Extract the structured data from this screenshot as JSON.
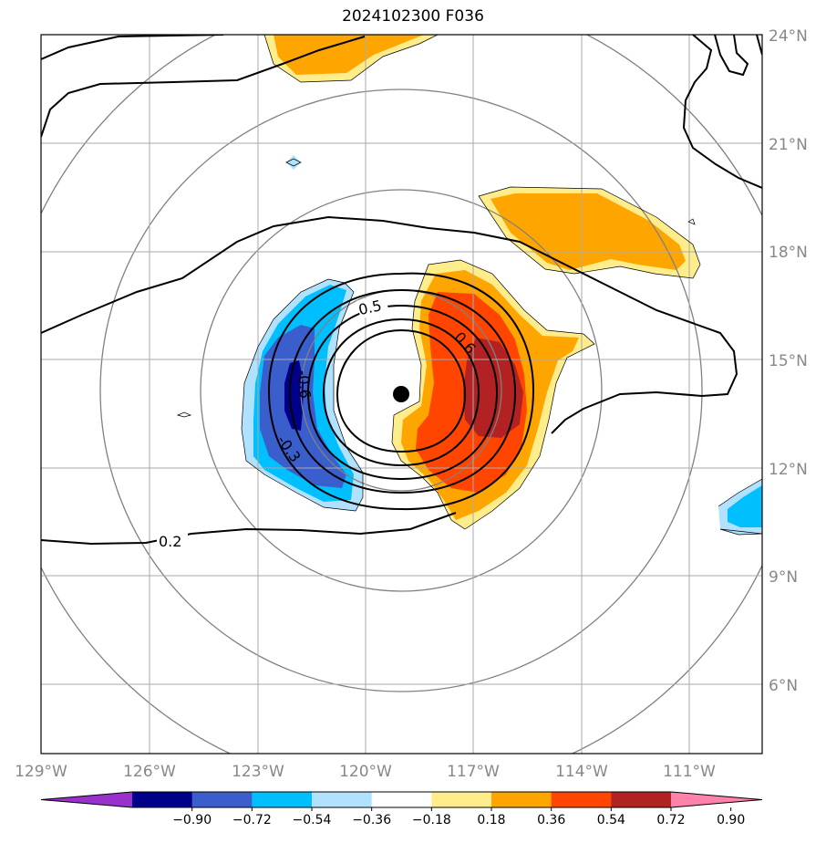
{
  "title": "2024102300 F036",
  "lon_ticks": [
    "129°W",
    "126°W",
    "123°W",
    "120°W",
    "117°W",
    "114°W",
    "111°W"
  ],
  "lat_ticks": [
    "24°N",
    "21°N",
    "18°N",
    "15°N",
    "12°N",
    "9°N",
    "6°N"
  ],
  "contour_labels": {
    "c02": "0.2",
    "c05": "0.5",
    "c06": "0.6",
    "cm03": "-0.3",
    "cm06": "-0.6"
  },
  "colorbar": {
    "labels": [
      "−0.90",
      "−0.72",
      "−0.54",
      "−0.36",
      "−0.18",
      "0.18",
      "0.36",
      "0.54",
      "0.72",
      "0.90"
    ],
    "colors": [
      "#9932cc",
      "#00008b",
      "#3a5fcd",
      "#00bfff",
      "#b0e2ff",
      "#ffffff",
      "#ffec8b",
      "#ffa500",
      "#ff4500",
      "#b22222",
      "#ff82ab"
    ]
  },
  "colors": {
    "grid": "#aaaaaa",
    "range_rings": "#808080",
    "contour": "#000000",
    "storm_center": "#000000"
  }
}
